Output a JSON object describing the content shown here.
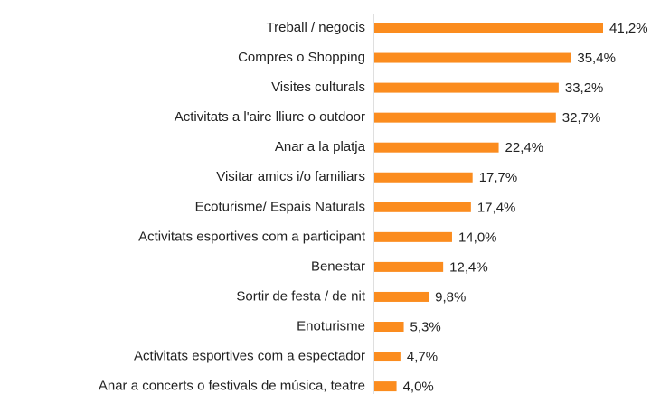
{
  "chart_data": {
    "type": "barh",
    "categories": [
      "Treball / negocis",
      "Compres o Shopping",
      "Visites culturals",
      "Activitats a l'aire lliure o outdoor",
      "Anar a la platja",
      "Visitar amics i/o familiars",
      "Ecoturisme/ Espais Naturals",
      "Activitats esportives com a participant",
      "Benestar",
      "Sortir de festa / de nit",
      "Enoturisme",
      "Activitats esportives com a espectador",
      "Anar a concerts o festivals de música, teatre"
    ],
    "values": [
      41.2,
      35.4,
      33.2,
      32.7,
      22.4,
      17.7,
      17.4,
      14.0,
      12.4,
      9.8,
      5.3,
      4.7,
      4.0
    ],
    "value_labels": [
      "41,2%",
      "35,4%",
      "33,2%",
      "32,7%",
      "22,4%",
      "17,7%",
      "17,4%",
      "14,0%",
      "12,4%",
      "9,8%",
      "5,3%",
      "4,7%",
      "4,0%"
    ],
    "color": "#fb8c1e"
  }
}
